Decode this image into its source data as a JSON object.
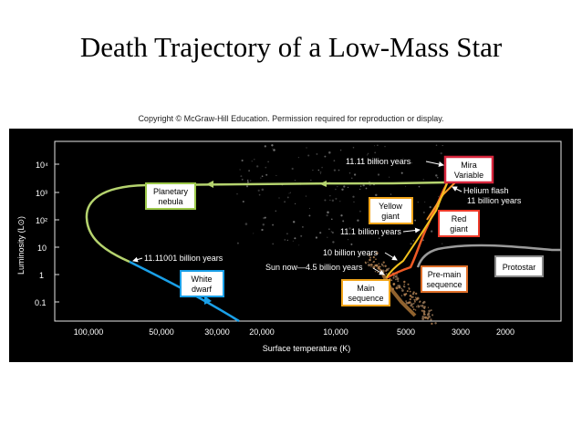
{
  "slide": {
    "title": "Death Trajectory of a Low-Mass Star",
    "copyright": "Copyright © McGraw-Hill Education. Permission required for reproduction or display."
  },
  "axes": {
    "y_title": "Luminosity (L⊙)",
    "x_title": "Surface temperature (K)",
    "y_ticks": [
      "10⁴",
      "10³",
      "10²",
      "10",
      "1",
      "0.1"
    ],
    "x_ticks": [
      "100,000",
      "50,000",
      "30,000",
      "20,000",
      "10,000",
      "5000",
      "3000",
      "2000"
    ]
  },
  "stages": {
    "planetary_nebula": [
      "Planetary",
      "nebula"
    ],
    "white_dwarf": [
      "White",
      "dwarf"
    ],
    "yellow_giant": [
      "Yellow",
      "giant"
    ],
    "red_giant": [
      "Red",
      "giant"
    ],
    "mira_variable": [
      "Mira",
      "Variable"
    ],
    "main_sequence": [
      "Main",
      "sequence"
    ],
    "pre_main_sequence": [
      "Pre-main",
      "sequence"
    ],
    "protostar": [
      "Protostar"
    ]
  },
  "annotations": {
    "t_mira": "11.11 billion years",
    "helium_flash": "Helium flash",
    "t_helium": "11 billion years",
    "t_yellow": "11.1 billion years",
    "t_10": "10 billion years",
    "sun_now": "Sun now—4.5 billion years",
    "t_wd": "11.11001 billion years"
  },
  "colors": {
    "background": "#000000",
    "nebula_track": "#b5d36e",
    "white_dwarf_track": "#1aa0e8",
    "giant_track": "#f26b1d",
    "mira_box_border": "#d7263d",
    "yellow_box_border": "#f2a51a",
    "red_box_border": "#ee3a2a",
    "premain_box_border": "#e0702a",
    "protostar_box_border": "#8a8a8a",
    "nebula_box_border": "#9cc84a",
    "white_dwarf_box_border": "#1aa0e8"
  }
}
